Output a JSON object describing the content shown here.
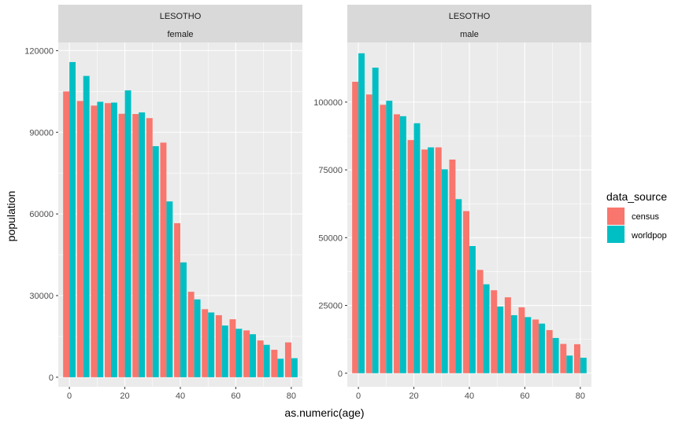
{
  "chart_data": {
    "type": "bar",
    "xlabel": "as.numeric(age)",
    "ylabel": "population",
    "legend": {
      "title": "data_source",
      "position": "right",
      "entries": [
        {
          "name": "census",
          "color": "#F8766D"
        },
        {
          "name": "worldpop",
          "color": "#00BFC4"
        }
      ]
    },
    "x_ticks": [
      0,
      20,
      40,
      60,
      80
    ],
    "x_range": [
      -4,
      84
    ],
    "grid": true,
    "panels": [
      {
        "strip_top": "LESOTHO",
        "strip_bottom": "female",
        "ylim": [
          -3500,
          123000
        ],
        "y_ticks": [
          0,
          30000,
          60000,
          90000,
          120000
        ],
        "y_tick_labels": [
          "0",
          "30000",
          "60000",
          "90000",
          "120000"
        ],
        "series": [
          {
            "name": "census",
            "x": [
              0,
              5,
              10,
              15,
              20,
              25,
              30,
              35,
              40,
              45,
              50,
              55,
              60,
              65,
              70,
              75,
              80
            ],
            "values": [
              105000,
              101500,
              99800,
              100700,
              96800,
              96700,
              95200,
              86200,
              56600,
              31400,
              25000,
              22800,
              21300,
              17200,
              13500,
              10100,
              12800
            ]
          },
          {
            "name": "worldpop",
            "x": [
              0,
              5,
              10,
              15,
              20,
              25,
              30,
              35,
              40,
              45,
              50,
              55,
              60,
              65,
              70,
              75,
              80
            ],
            "values": [
              115800,
              110700,
              101200,
              100900,
              105400,
              97300,
              84900,
              64600,
              42200,
              28600,
              23800,
              19000,
              17800,
              15800,
              11900,
              6800,
              7000
            ]
          }
        ]
      },
      {
        "strip_top": "LESOTHO",
        "strip_bottom": "male",
        "ylim": [
          -5000,
          122000
        ],
        "y_ticks": [
          0,
          25000,
          50000,
          75000,
          100000
        ],
        "y_tick_labels": [
          "0",
          "25000",
          "50000",
          "75000",
          "100000"
        ],
        "series": [
          {
            "name": "census",
            "x": [
              0,
              5,
              10,
              15,
              20,
              25,
              30,
              35,
              40,
              45,
              50,
              55,
              60,
              65,
              70,
              75,
              80
            ],
            "values": [
              107500,
              102800,
              99000,
              95500,
              86000,
              82500,
              83300,
              78800,
              59800,
              38100,
              30600,
              28000,
              24300,
              19800,
              15900,
              10800,
              10700
            ]
          },
          {
            "name": "worldpop",
            "x": [
              0,
              5,
              10,
              15,
              20,
              25,
              30,
              35,
              40,
              45,
              50,
              55,
              60,
              65,
              70,
              75,
              80
            ],
            "values": [
              118000,
              112700,
              100500,
              94800,
              92200,
              83300,
              75200,
              64200,
              46900,
              32800,
              24600,
              21400,
              20700,
              18300,
              13000,
              6500,
              5700
            ]
          }
        ]
      }
    ]
  }
}
